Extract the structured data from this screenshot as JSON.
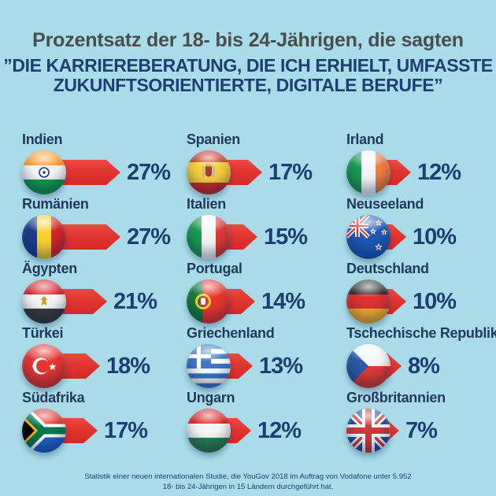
{
  "page": {
    "background_color": "#a9dbe8"
  },
  "title": {
    "line1": "Prozentsatz der 18- bis 24-Jährigen, die sagten",
    "quote_line1": "”DIE KARRIEREBERATUNG, DIE ICH ERHIELT, UMFASSTE",
    "quote_line2": "ZUKUNFTSORIENTIERTE, DIGITALE BERUFE”"
  },
  "footer": {
    "line1": "Statistik einer neuen internationalen Studie, die YouGov 2018 im Auftrag von Vodafone unter 5.952",
    "line2": "18- bis 24-Jährigen in 15 Ländern durchgeführt hat."
  },
  "colors": {
    "background": "#a9dbe8",
    "arrow_red": "#e23530",
    "percent_navy": "#1c3e70",
    "label_navy": "#23395b",
    "title_gray": "#4a4d4e",
    "headline_blue": "#1d4070"
  },
  "chart_data": {
    "type": "bar",
    "orientation": "horizontal",
    "unit": "%",
    "columns": 3,
    "rows_per_column": 5,
    "value_range": [
      0,
      30
    ],
    "title": "Prozentsatz der 18- bis 24-Jährigen, die sagten",
    "subtitle": "”DIE KARRIEREBERATUNG, DIE ICH ERHIELT, UMFASSTE ZUKUNFTSORIENTIERTE, DIGITALE BERUFE”",
    "source_note": "Statistik einer neuen internationalen Studie, die YouGov 2018 im Auftrag von Vodafone unter 5.952 18- bis 24-Jährigen in 15 Ländern durchgeführt hat.",
    "items": [
      {
        "name": "Indien",
        "value": 27,
        "flag": "in",
        "flag_icon": "india-flag-icon"
      },
      {
        "name": "Rumänien",
        "value": 27,
        "flag": "ro",
        "flag_icon": "romania-flag-icon"
      },
      {
        "name": "Ägypten",
        "value": 21,
        "flag": "eg",
        "flag_icon": "egypt-flag-icon"
      },
      {
        "name": "Türkei",
        "value": 18,
        "flag": "tr",
        "flag_icon": "turkey-flag-icon"
      },
      {
        "name": "Südafrika",
        "value": 17,
        "flag": "za",
        "flag_icon": "south-africa-flag-icon"
      },
      {
        "name": "Spanien",
        "value": 17,
        "flag": "es",
        "flag_icon": "spain-flag-icon"
      },
      {
        "name": "Italien",
        "value": 15,
        "flag": "it",
        "flag_icon": "italy-flag-icon"
      },
      {
        "name": "Portugal",
        "value": 14,
        "flag": "pt",
        "flag_icon": "portugal-flag-icon"
      },
      {
        "name": "Griechenland",
        "value": 13,
        "flag": "gr",
        "flag_icon": "greece-flag-icon"
      },
      {
        "name": "Ungarn",
        "value": 12,
        "flag": "hu",
        "flag_icon": "hungary-flag-icon"
      },
      {
        "name": "Irland",
        "value": 12,
        "flag": "ie",
        "flag_icon": "ireland-flag-icon"
      },
      {
        "name": "Neuseeland",
        "value": 10,
        "flag": "nz",
        "flag_icon": "new-zealand-flag-icon"
      },
      {
        "name": "Deutschland",
        "value": 10,
        "flag": "de",
        "flag_icon": "germany-flag-icon"
      },
      {
        "name": "Tschechische Republik",
        "value": 8,
        "flag": "cz",
        "flag_icon": "czech-republic-flag-icon"
      },
      {
        "name": "Großbritannien",
        "value": 7,
        "flag": "gb",
        "flag_icon": "great-britain-flag-icon"
      }
    ]
  }
}
